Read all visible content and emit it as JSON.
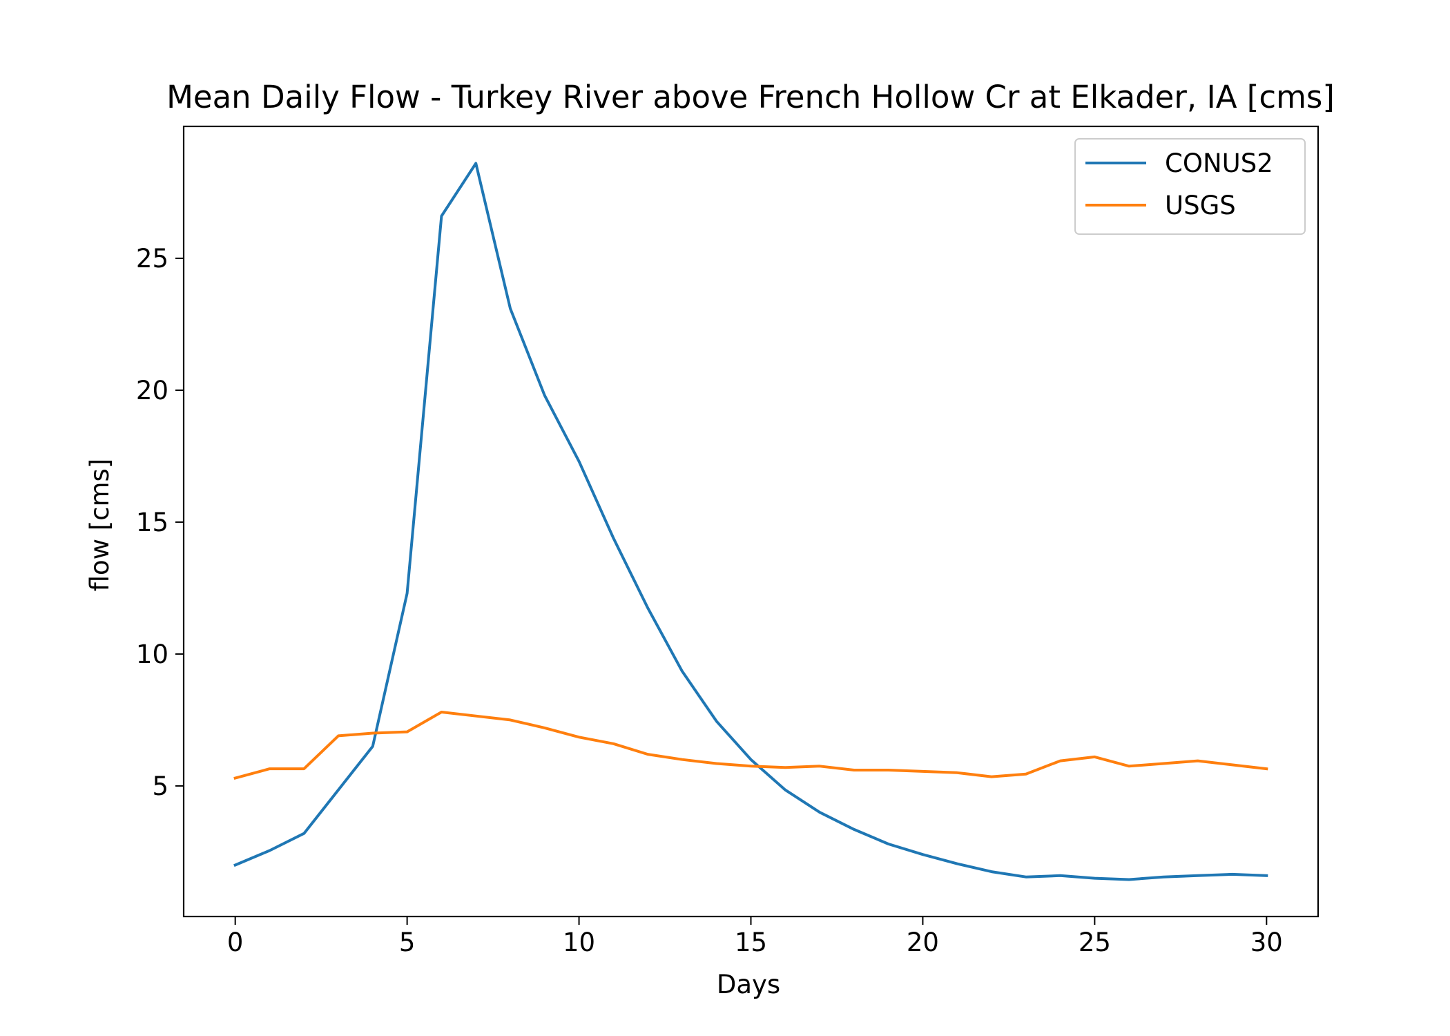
{
  "chart_data": {
    "type": "line",
    "title": "Mean Daily Flow - Turkey River above French Hollow Cr at Elkader, IA [cms]",
    "xlabel": "Days",
    "ylabel": "flow [cms]",
    "xlim": [
      -1.5,
      31.5
    ],
    "ylim": [
      0.05,
      30.0
    ],
    "xticks": [
      0,
      5,
      10,
      15,
      20,
      25,
      30
    ],
    "yticks": [
      5,
      10,
      15,
      20,
      25
    ],
    "grid": false,
    "legend_position": "top-right",
    "x": [
      0,
      1,
      2,
      3,
      4,
      5,
      6,
      7,
      8,
      9,
      10,
      11,
      12,
      13,
      14,
      15,
      16,
      17,
      18,
      19,
      20,
      21,
      22,
      23,
      24,
      25,
      26,
      27,
      28,
      29,
      30
    ],
    "series": [
      {
        "name": "CONUS2",
        "color": "#1f77b4",
        "values": [
          2.0,
          2.55,
          3.2,
          4.85,
          6.5,
          12.3,
          26.6,
          28.6,
          23.1,
          19.8,
          17.3,
          14.4,
          11.75,
          9.35,
          7.45,
          6.0,
          4.85,
          4.0,
          3.35,
          2.8,
          2.4,
          2.05,
          1.75,
          1.55,
          1.6,
          1.5,
          1.45,
          1.55,
          1.6,
          1.65,
          1.6
        ]
      },
      {
        "name": "USGS",
        "color": "#ff7f0e",
        "values": [
          5.3,
          5.65,
          5.65,
          6.9,
          7.0,
          7.05,
          7.8,
          7.65,
          7.5,
          7.2,
          6.85,
          6.6,
          6.2,
          6.0,
          5.85,
          5.75,
          5.7,
          5.75,
          5.6,
          5.6,
          5.55,
          5.5,
          5.35,
          5.45,
          5.95,
          6.1,
          5.75,
          5.85,
          5.95,
          5.8,
          5.65
        ]
      }
    ]
  }
}
